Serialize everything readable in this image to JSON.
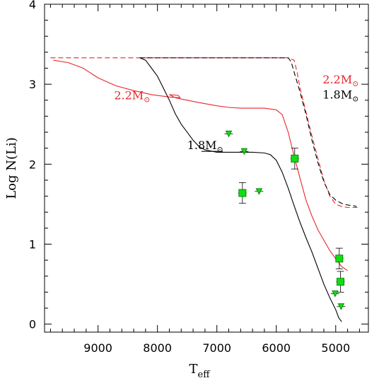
{
  "chart_data": {
    "type": "scatter",
    "title": "",
    "xlabel": "T",
    "xlabel_sub": "eff",
    "ylabel": "Log N(Li)",
    "xlim": [
      9900,
      4450
    ],
    "ylim": [
      -0.1,
      4.0
    ],
    "x_reversed": true,
    "grid": false,
    "legend": "none",
    "x_ticks": [
      9000,
      8000,
      7000,
      6000,
      5000
    ],
    "x_tick_labels": [
      "9000",
      "8000",
      "7000",
      "6000",
      "5000"
    ],
    "y_ticks": [
      0,
      1,
      2,
      3,
      4
    ],
    "y_tick_labels": [
      "0",
      "1",
      "2",
      "3",
      "4"
    ],
    "series": [
      {
        "name": "2.2M",
        "style": "solid",
        "color": "#e8262b",
        "points": [
          [
            9750,
            3.3
          ],
          [
            9500,
            3.27
          ],
          [
            9250,
            3.2
          ],
          [
            9000,
            3.08
          ],
          [
            8700,
            2.98
          ],
          [
            8400,
            2.92
          ],
          [
            8100,
            2.87
          ],
          [
            7800,
            2.84
          ],
          [
            7620,
            2.83
          ],
          [
            7650,
            2.86
          ],
          [
            7800,
            2.87
          ],
          [
            7700,
            2.83
          ],
          [
            7500,
            2.8
          ],
          [
            7300,
            2.77
          ],
          [
            7000,
            2.73
          ],
          [
            6800,
            2.71
          ],
          [
            6600,
            2.7
          ],
          [
            6200,
            2.7
          ],
          [
            6000,
            2.68
          ],
          [
            5900,
            2.62
          ],
          [
            5800,
            2.4
          ],
          [
            5700,
            2.1
          ],
          [
            5600,
            1.82
          ],
          [
            5500,
            1.55
          ],
          [
            5400,
            1.35
          ],
          [
            5300,
            1.18
          ],
          [
            5200,
            1.05
          ],
          [
            5100,
            0.92
          ],
          [
            5000,
            0.82
          ],
          [
            4900,
            0.72
          ],
          [
            4800,
            0.67
          ]
        ]
      },
      {
        "name": "1.8M",
        "style": "solid",
        "color": "#000000",
        "points": [
          [
            8300,
            3.33
          ],
          [
            8200,
            3.3
          ],
          [
            8100,
            3.2
          ],
          [
            8000,
            3.1
          ],
          [
            7900,
            2.95
          ],
          [
            7800,
            2.8
          ],
          [
            7700,
            2.63
          ],
          [
            7600,
            2.5
          ],
          [
            7500,
            2.4
          ],
          [
            7400,
            2.3
          ],
          [
            7300,
            2.22
          ],
          [
            7200,
            2.18
          ],
          [
            7000,
            2.15
          ],
          [
            6800,
            2.15
          ],
          [
            6600,
            2.15
          ],
          [
            6400,
            2.15
          ],
          [
            6200,
            2.14
          ],
          [
            6100,
            2.12
          ],
          [
            6000,
            2.05
          ],
          [
            5900,
            1.9
          ],
          [
            5800,
            1.7
          ],
          [
            5700,
            1.48
          ],
          [
            5600,
            1.27
          ],
          [
            5500,
            1.08
          ],
          [
            5400,
            0.9
          ],
          [
            5300,
            0.7
          ],
          [
            5200,
            0.5
          ],
          [
            5100,
            0.33
          ],
          [
            5000,
            0.18
          ],
          [
            4950,
            0.08
          ],
          [
            4900,
            0.03
          ]
        ]
      },
      {
        "name": "1.8M-connector",
        "style": "solid",
        "color": "#000000",
        "points": [
          [
            7260,
            2.16
          ],
          [
            6900,
            2.16
          ]
        ]
      },
      {
        "name": "2.2M dashed",
        "style": "dashed",
        "color": "#e8262b",
        "points": [
          [
            9800,
            3.33
          ],
          [
            5800,
            3.33
          ],
          [
            5700,
            3.3
          ],
          [
            5650,
            3.15
          ],
          [
            5600,
            2.95
          ],
          [
            5500,
            2.65
          ],
          [
            5400,
            2.35
          ],
          [
            5300,
            2.07
          ],
          [
            5200,
            1.8
          ],
          [
            5100,
            1.6
          ],
          [
            5000,
            1.5
          ],
          [
            4900,
            1.47
          ],
          [
            4800,
            1.46
          ],
          [
            4700,
            1.46
          ],
          [
            4600,
            1.46
          ]
        ]
      },
      {
        "name": "1.8M dashed",
        "style": "dashed",
        "color": "#000000",
        "points": [
          [
            8300,
            3.33
          ],
          [
            5800,
            3.33
          ],
          [
            5750,
            3.28
          ],
          [
            5700,
            3.15
          ],
          [
            5600,
            2.9
          ],
          [
            5500,
            2.62
          ],
          [
            5400,
            2.3
          ],
          [
            5300,
            2.02
          ],
          [
            5200,
            1.78
          ],
          [
            5100,
            1.62
          ],
          [
            5000,
            1.55
          ],
          [
            4900,
            1.51
          ],
          [
            4800,
            1.49
          ],
          [
            4700,
            1.48
          ],
          [
            4650,
            1.47
          ]
        ]
      }
    ],
    "observations": [
      {
        "x": 6800,
        "y": 2.38,
        "marker": "down",
        "err": 0.0
      },
      {
        "x": 6540,
        "y": 2.16,
        "marker": "down",
        "err": 0.0
      },
      {
        "x": 6570,
        "y": 1.64,
        "marker": "square",
        "err": 0.13
      },
      {
        "x": 6290,
        "y": 1.66,
        "marker": "down",
        "err": 0.0
      },
      {
        "x": 5690,
        "y": 2.07,
        "marker": "square",
        "err": 0.13
      },
      {
        "x": 4940,
        "y": 0.82,
        "marker": "square",
        "err": 0.13
      },
      {
        "x": 4920,
        "y": 0.53,
        "marker": "square",
        "err": 0.13
      },
      {
        "x": 5010,
        "y": 0.38,
        "marker": "down",
        "err": 0.0
      },
      {
        "x": 4910,
        "y": 0.22,
        "marker": "down",
        "err": 0.0
      }
    ],
    "annotations": [
      {
        "text": "2.2M",
        "sub": "⊙",
        "x": 8730,
        "y": 2.81,
        "color": "#e8262b"
      },
      {
        "text": "2.2M",
        "sub": "⊙",
        "x": 5220,
        "y": 3.01,
        "color": "#e8262b"
      },
      {
        "text": "1.8M",
        "sub": "⊙",
        "x": 5220,
        "y": 2.82,
        "color": "#000000"
      },
      {
        "text": "1.8M",
        "sub": "⊙",
        "x": 7500,
        "y": 2.19,
        "color": "#000000"
      }
    ],
    "colors": {
      "axis": "#000000",
      "marker_fill": "#11dd11",
      "marker_stroke": "#0a8a0a"
    }
  }
}
